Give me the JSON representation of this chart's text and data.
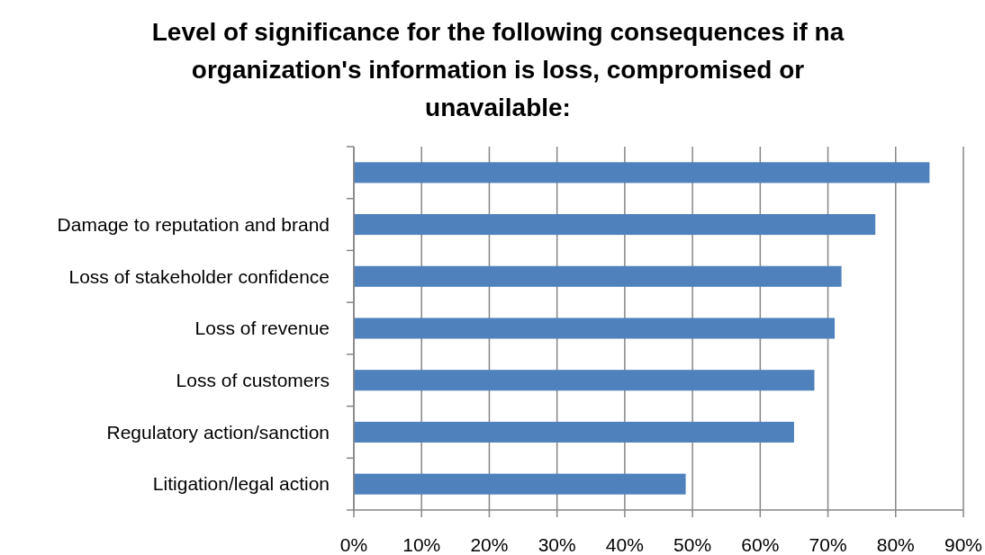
{
  "chart_data": {
    "type": "bar",
    "orientation": "horizontal",
    "title": "Level of significance for the following consequences if na organization's information is loss, compromised or unavailable:",
    "categories": [
      null,
      "Damage to reputation and brand",
      "Loss of stakeholder confidence",
      "Loss of revenue",
      "Loss of customers",
      "Regulatory action/sanction",
      "Litigation/legal action"
    ],
    "values": [
      85,
      77,
      72,
      71,
      68,
      65,
      49
    ],
    "color": "#4f81bd",
    "xlim": [
      0,
      90
    ],
    "xticks": [
      {
        "value": 0,
        "label": "0%"
      },
      {
        "value": 10,
        "label": "10%"
      },
      {
        "value": 20,
        "label": "20%"
      },
      {
        "value": 30,
        "label": "30%"
      },
      {
        "value": 40,
        "label": "40%"
      },
      {
        "value": 50,
        "label": "50%"
      },
      {
        "value": 60,
        "label": "60%"
      },
      {
        "value": 70,
        "label": "70%"
      },
      {
        "value": 80,
        "label": "80%"
      },
      {
        "value": 90,
        "label": "90%"
      }
    ],
    "grid": "x"
  }
}
